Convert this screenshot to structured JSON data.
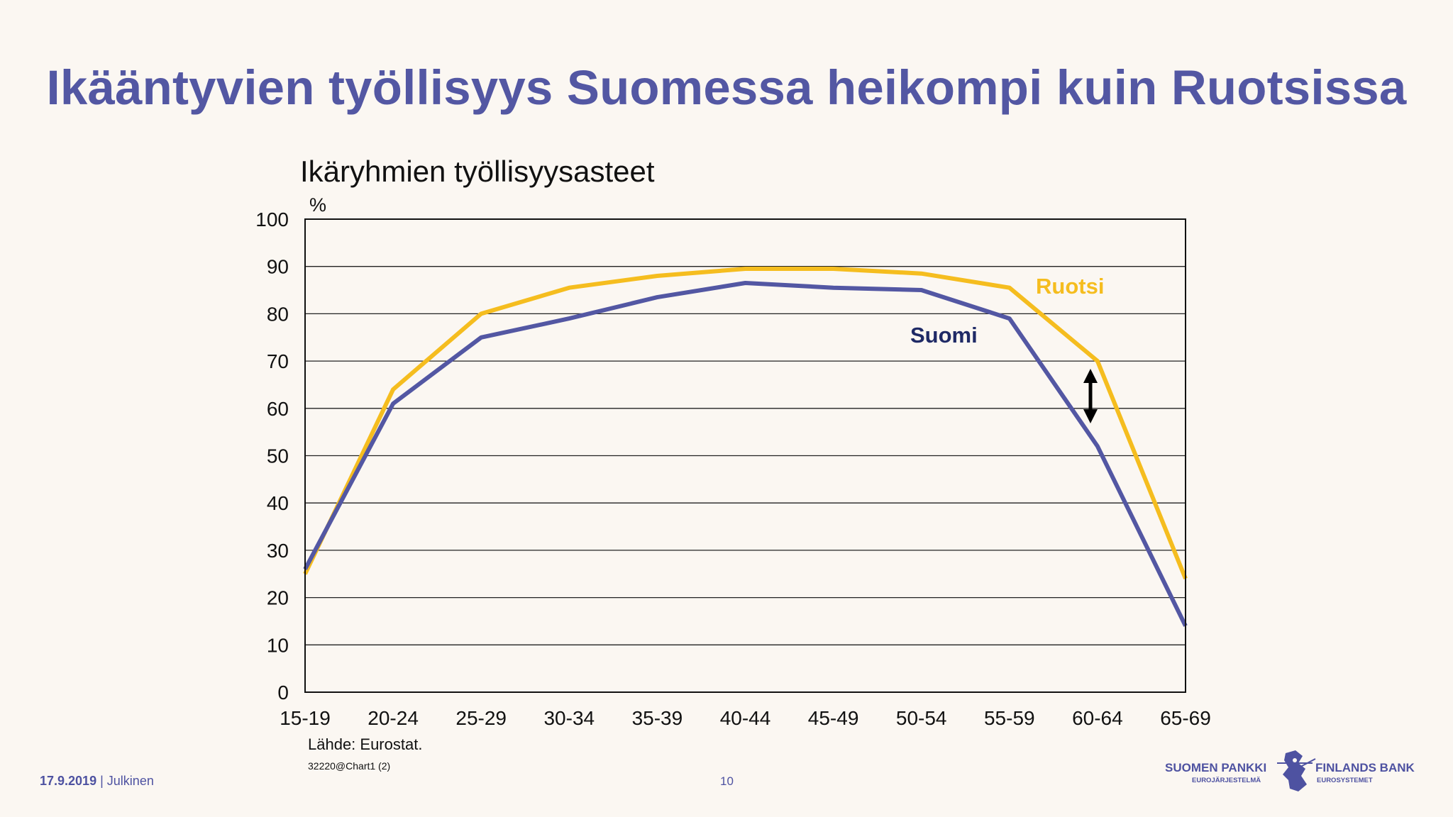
{
  "slide": {
    "title": "Ikääntyvien työllisyys Suomessa heikompi kuin Ruotsissa",
    "footer_date": "17.9.2019",
    "footer_separator": "|",
    "footer_class": "Julkinen",
    "page_number": "10"
  },
  "logo": {
    "left_name": "SUOMEN PANKKI",
    "left_sub": "EUROJÄRJESTELMÄ",
    "right_name": "FINLANDS BANK",
    "right_sub": "EUROSYSTEMET"
  },
  "colors": {
    "suomi": "#5357a3",
    "ruotsi": "#f5bd1f",
    "suomi_label": "#1f2a66",
    "ruotsi_label": "#f5bd1f",
    "title": "#5357a3"
  },
  "chart_data": {
    "type": "line",
    "title": "Ikäryhmien työllisyysasteet",
    "ylabel": "%",
    "xlabel": "",
    "categories": [
      "15-19",
      "20-24",
      "25-29",
      "30-34",
      "35-39",
      "40-44",
      "45-49",
      "50-54",
      "55-59",
      "60-64",
      "65-69"
    ],
    "ylim": [
      0,
      100
    ],
    "yticks": [
      0,
      10,
      20,
      30,
      40,
      50,
      60,
      70,
      80,
      90,
      100
    ],
    "grid": true,
    "series": [
      {
        "name": "Ruotsi",
        "values": [
          25,
          64,
          80,
          85.5,
          88,
          89.5,
          89.5,
          88.5,
          85.5,
          70,
          24
        ]
      },
      {
        "name": "Suomi",
        "values": [
          26,
          61,
          75,
          79,
          83.5,
          86.5,
          85.5,
          85,
          79,
          52,
          14
        ]
      }
    ],
    "annotation": "double-arrow between Suomi and Ruotsi at 60-64",
    "source": "Lähde: Eurostat.",
    "code": "32220@Chart1 (2)"
  }
}
